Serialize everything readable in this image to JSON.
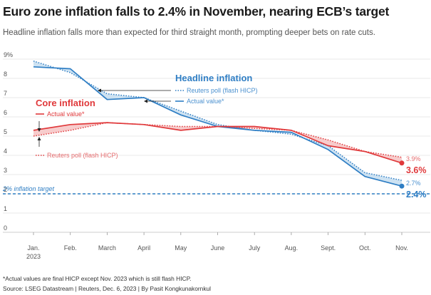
{
  "header": {
    "title": "Euro zone inflation falls to 2.4% in November, nearing ECB’s target",
    "subtitle": "Headline inflation falls more than expected for third straight month, prompting deeper bets on rate cuts."
  },
  "chart_data": {
    "type": "line",
    "ylim": [
      0,
      9
    ],
    "y_ticks": [
      0,
      1,
      2,
      3,
      4,
      5,
      6,
      7,
      8,
      9
    ],
    "y_tick_labels": [
      "0",
      "1",
      "2",
      "3",
      "4",
      "5",
      "6",
      "7",
      "8",
      "9%"
    ],
    "categories": [
      "Jan.",
      "Feb.",
      "March",
      "April",
      "May",
      "June",
      "July",
      "Aug.",
      "Sept.",
      "Oct.",
      "Nov."
    ],
    "category_sublabels": [
      "2023",
      "",
      "",
      "",
      "",
      "",
      "",
      "",
      "",
      "",
      ""
    ],
    "grid": "horizontal",
    "target": {
      "value": 2.0,
      "label": "2% inflation target"
    },
    "series": [
      {
        "name": "Headline inflation – Reuters poll (flash HICP)",
        "style": "dotted",
        "color": "#2f7ec4",
        "values": [
          8.9,
          8.3,
          7.2,
          7.0,
          6.3,
          5.6,
          5.3,
          5.1,
          4.5,
          3.1,
          2.7
        ]
      },
      {
        "name": "Headline inflation – Actual value*",
        "style": "solid",
        "color": "#2f7ec4",
        "values": [
          8.6,
          8.5,
          6.9,
          7.0,
          6.1,
          5.5,
          5.3,
          5.2,
          4.3,
          2.9,
          2.4
        ]
      },
      {
        "name": "Core inflation – Reuters poll (flash HICP)",
        "style": "dotted",
        "color": "#e0393b",
        "values": [
          5.0,
          5.3,
          5.7,
          5.6,
          5.5,
          5.5,
          5.4,
          5.3,
          4.8,
          4.2,
          3.9
        ]
      },
      {
        "name": "Core inflation – Actual value*",
        "style": "solid",
        "color": "#e0393b",
        "values": [
          5.3,
          5.6,
          5.7,
          5.6,
          5.3,
          5.5,
          5.5,
          5.3,
          4.5,
          4.2,
          3.6
        ]
      }
    ],
    "annotations": {
      "headline_title": "Headline inflation",
      "headline_poll": "Reuters poll (flash HICP)",
      "headline_actual": "Actual value*",
      "core_title": "Core inflation",
      "core_actual": "Actual value*",
      "core_poll": "Reuters poll (flash HICP)",
      "core_poll_end": "3.9%",
      "core_actual_end": "3.6%",
      "headline_poll_end": "2.7%",
      "headline_actual_end": "2.4%"
    }
  },
  "footer": {
    "note": "*Actual values are final HICP except Nov. 2023 which is still flash HICP.",
    "source": "Source: LSEG Datastream | Reuters, Dec. 6, 2023 | By Pasit Kongkunakornkul"
  },
  "colors": {
    "headline": "#2f7ec4",
    "headline_fill": "#c8dff1",
    "core": "#e0393b",
    "core_fill": "#f6c6c6",
    "grid": "#e1e1e1"
  }
}
